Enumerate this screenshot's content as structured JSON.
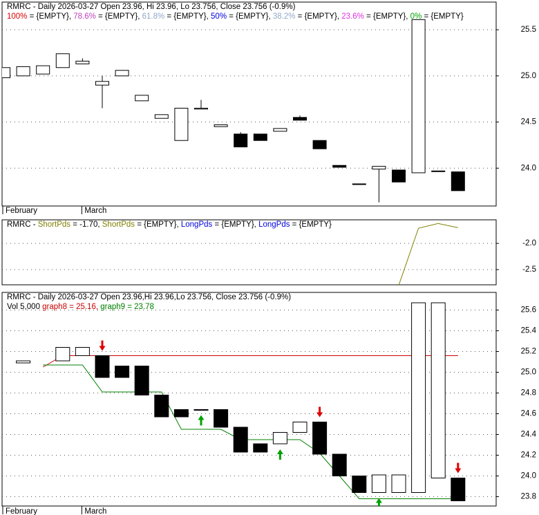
{
  "chart_data": [
    {
      "type": "candlestick",
      "legend": [
        [
          {
            "text": "RMRC - Daily 2026-03-27 Open 23.96, Hi 23.96, Lo 23.756, Close 23.756 (-0.9%)",
            "color": "#000000"
          }
        ],
        [
          {
            "text": "100%",
            "color": "#e00000"
          },
          {
            "text": " = {EMPTY}, ",
            "color": "#000000"
          },
          {
            "text": "78.6%",
            "color": "#c040c0"
          },
          {
            "text": " = {EMPTY}, ",
            "color": "#000000"
          },
          {
            "text": "61.8%",
            "color": "#90a8c8"
          },
          {
            "text": " = {EMPTY}, ",
            "color": "#000000"
          },
          {
            "text": "50%",
            "color": "#0000e0"
          },
          {
            "text": " = {EMPTY}, ",
            "color": "#000000"
          },
          {
            "text": "38.2%",
            "color": "#90a8c8"
          },
          {
            "text": " = {EMPTY}, ",
            "color": "#000000"
          },
          {
            "text": "23.6%",
            "color": "#e030e0"
          },
          {
            "text": " = {EMPTY}, ",
            "color": "#000000"
          },
          {
            "text": "0%",
            "color": "#00a000"
          },
          {
            "text": " = {EMPTY}",
            "color": "#000000"
          }
        ]
      ],
      "categories": [
        "February",
        null,
        null,
        null,
        "March",
        null,
        null,
        null,
        null,
        null,
        null,
        null,
        null,
        null,
        null,
        null,
        null,
        null,
        null,
        null,
        null,
        null,
        null,
        null
      ],
      "open": [
        24.98,
        25.0,
        25.02,
        25.09,
        25.13,
        24.9,
        25.0,
        24.73,
        24.54,
        24.3,
        24.64,
        24.45,
        24.37,
        24.37,
        24.4,
        24.55,
        24.3,
        24.03,
        23.83,
        23.99,
        23.98,
        23.95,
        23.97,
        23.96
      ],
      "high": [
        25.09,
        25.1,
        25.11,
        25.24,
        25.19,
        25.0,
        25.06,
        24.79,
        24.58,
        24.65,
        24.74,
        24.47,
        24.39,
        24.37,
        24.43,
        24.57,
        24.3,
        24.03,
        23.83,
        24.02,
        23.98,
        25.61,
        23.97,
        23.96
      ],
      "low": [
        24.98,
        25.0,
        25.02,
        25.09,
        25.13,
        24.65,
        25.0,
        24.73,
        24.54,
        24.3,
        24.64,
        24.45,
        24.23,
        24.3,
        24.4,
        24.52,
        24.21,
        24.01,
        23.83,
        23.63,
        23.85,
        23.95,
        23.97,
        23.756
      ],
      "close": [
        25.09,
        25.1,
        25.11,
        25.24,
        25.16,
        24.94,
        25.06,
        24.79,
        24.58,
        24.65,
        24.65,
        24.47,
        24.23,
        24.3,
        24.43,
        24.52,
        24.21,
        24.01,
        23.83,
        24.02,
        23.85,
        25.61,
        23.97,
        23.756
      ],
      "up_color": "#ffffff",
      "down_color": "#000000",
      "ylim": [
        23.59,
        25.8
      ],
      "yticks": [
        {
          "value": 24,
          "label": "24.0"
        },
        24.5,
        {
          "value": 25,
          "label": "25.0"
        },
        25.5
      ],
      "grid": true
    },
    {
      "type": "line",
      "legend": [
        [
          {
            "text": "RMRC - ",
            "color": "#000000"
          },
          {
            "text": "ShortPds",
            "color": "#808000"
          },
          {
            "text": " = -1.70, ",
            "color": "#000000"
          },
          {
            "text": "ShortPds",
            "color": "#808000"
          },
          {
            "text": " = {EMPTY}, ",
            "color": "#000000"
          },
          {
            "text": "LongPds",
            "color": "#0000e0"
          },
          {
            "text": " = {EMPTY}, ",
            "color": "#000000"
          },
          {
            "text": "LongPds",
            "color": "#0000e0"
          },
          {
            "text": " = {EMPTY}",
            "color": "#000000"
          }
        ]
      ],
      "series": [
        {
          "name": "ShortPds",
          "color": "#808000",
          "values": [
            null,
            null,
            null,
            null,
            null,
            null,
            null,
            null,
            null,
            null,
            null,
            null,
            null,
            null,
            null,
            null,
            null,
            null,
            null,
            null,
            -2.8,
            -1.71,
            -1.62,
            -1.7
          ]
        }
      ],
      "ylim": [
        -2.79,
        -1.55
      ],
      "yticks": [
        {
          "value": -2.5,
          "label": "-2.5"
        },
        {
          "value": -2,
          "label": "-2.0"
        }
      ],
      "grid": true
    },
    {
      "type": "candlestick",
      "legend": [
        [
          {
            "text": "RMRC - Daily 2026-03-27 Open 23.96,Hi 23.96,Lo 23.756, Close 23.756 (-0.9%)",
            "color": "#000000"
          }
        ],
        [
          {
            "text": "Vol 5,000 ",
            "color": "#000000"
          },
          {
            "text": "graph8 = 25.16, ",
            "color": "#cc0000"
          },
          {
            "text": "graph9 = 23.78",
            "color": "#008000"
          }
        ]
      ],
      "categories": [
        "February",
        null,
        null,
        null,
        "March",
        null,
        null,
        null,
        null,
        null,
        null,
        null,
        null,
        null,
        null,
        null,
        null,
        null,
        null,
        null,
        null,
        null,
        null,
        null
      ],
      "open": [
        null,
        25.09,
        null,
        25.11,
        25.16,
        25.16,
        25.06,
        25.06,
        24.78,
        24.64,
        24.64,
        24.64,
        24.47,
        24.31,
        24.31,
        24.42,
        24.52,
        24.21,
        24.0,
        23.84,
        23.84,
        23.84,
        23.98,
        23.98
      ],
      "close": [
        null,
        25.11,
        null,
        25.24,
        25.24,
        24.95,
        24.95,
        24.78,
        24.57,
        24.57,
        24.64,
        24.47,
        24.23,
        24.23,
        24.42,
        24.52,
        24.21,
        24.0,
        23.84,
        24.01,
        24.01,
        25.67,
        25.67,
        23.76
      ],
      "up_color": "#ffffff",
      "down_color": "#000000",
      "series": [
        {
          "name": "graph8",
          "color": "#cc0000",
          "values": [
            null,
            null,
            25.05,
            25.16,
            25.16,
            25.16,
            25.16,
            25.16,
            25.16,
            25.16,
            25.16,
            25.16,
            25.16,
            25.16,
            25.16,
            25.16,
            25.16,
            25.16,
            25.16,
            25.16,
            25.16,
            25.16,
            25.16,
            25.16
          ]
        },
        {
          "name": "graph9",
          "color": "#008000",
          "values": [
            null,
            null,
            25.07,
            25.07,
            25.07,
            24.81,
            24.81,
            24.81,
            24.81,
            24.45,
            24.45,
            24.45,
            24.35,
            24.35,
            24.35,
            24.35,
            24.22,
            24.0,
            23.78,
            23.78,
            23.78,
            23.78,
            23.78,
            23.78
          ]
        }
      ],
      "sell_signals": [
        5,
        16,
        23
      ],
      "sell_color": "#e00000",
      "buy_signals": [
        10,
        14,
        19
      ],
      "buy_color": "#00a000",
      "ylim": [
        23.71,
        25.77
      ],
      "yticks": [
        23.8,
        {
          "value": 24,
          "label": "24.0"
        },
        24.2,
        24.4,
        24.6,
        24.8,
        {
          "value": 25,
          "label": "25.0"
        },
        25.2,
        25.4,
        25.6
      ],
      "grid": true
    }
  ]
}
